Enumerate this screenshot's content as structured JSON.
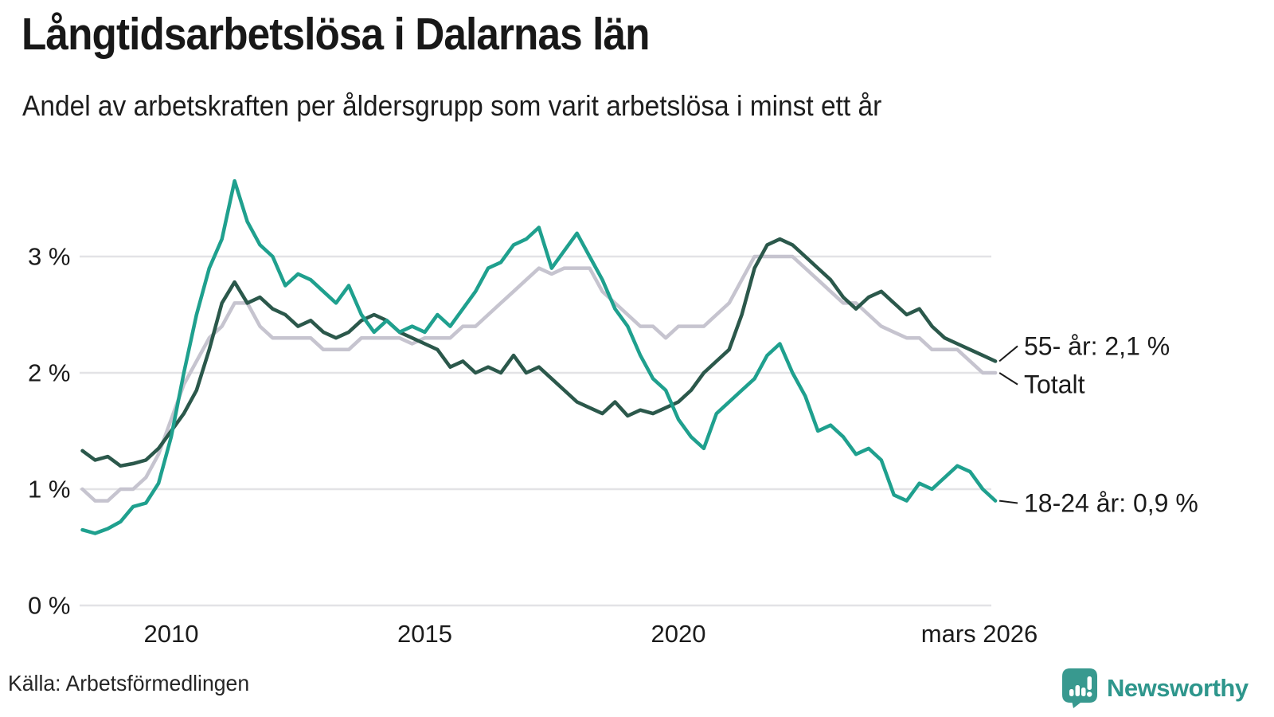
{
  "header": {
    "title": "Långtidsarbetslösa i Dalarnas län",
    "subtitle": "Andel av arbetskraften per åldersgrupp som varit arbetslösa i minst ett år"
  },
  "source": {
    "label": "Källa: Arbetsförmedlingen"
  },
  "branding": {
    "name": "Newsworthy",
    "logo_icon": "newsworthy-bar-chart-bubble",
    "brand_color": "#2E968C",
    "icon_fill": "#38998F"
  },
  "colors": {
    "grid": "#E3E3E6",
    "axis_text": "#1b1b1b",
    "annotation_text": "#1b1b1b",
    "connector": "#1b1b1b"
  },
  "chart_data": {
    "type": "line",
    "title": "Långtidsarbetslösa i Dalarnas län",
    "subtitle": "Andel av arbetskraften per åldersgrupp som varit arbetslösa i minst ett år",
    "unit": "%",
    "grid": true,
    "legend_position": "end-of-line-annotations",
    "x_axis": {
      "range": [
        2008.2,
        2026.3
      ],
      "ticks": [
        {
          "value": 2010,
          "label": "2010"
        },
        {
          "value": 2015,
          "label": "2015"
        },
        {
          "value": 2020,
          "label": "2020"
        },
        {
          "value": 2026.17,
          "label": "mars 2026"
        }
      ]
    },
    "y_axis": {
      "range": [
        0,
        3.75
      ],
      "ticks": [
        {
          "value": 0,
          "label": "0 %"
        },
        {
          "value": 1,
          "label": "1 %"
        },
        {
          "value": 2,
          "label": "2 %"
        },
        {
          "value": 3,
          "label": "3 %"
        }
      ]
    },
    "x": [
      2008.25,
      2008.5,
      2008.75,
      2009.0,
      2009.25,
      2009.5,
      2009.75,
      2010.0,
      2010.25,
      2010.5,
      2010.75,
      2011.0,
      2011.25,
      2011.5,
      2011.75,
      2012.0,
      2012.25,
      2012.5,
      2012.75,
      2013.0,
      2013.25,
      2013.5,
      2013.75,
      2014.0,
      2014.25,
      2014.5,
      2014.75,
      2015.0,
      2015.25,
      2015.5,
      2015.75,
      2016.0,
      2016.25,
      2016.5,
      2016.75,
      2017.0,
      2017.25,
      2017.5,
      2017.75,
      2018.0,
      2018.25,
      2018.5,
      2018.75,
      2019.0,
      2019.25,
      2019.5,
      2019.75,
      2020.0,
      2020.25,
      2020.5,
      2020.75,
      2021.0,
      2021.25,
      2021.5,
      2021.75,
      2022.0,
      2022.25,
      2022.5,
      2022.75,
      2023.0,
      2023.25,
      2023.5,
      2023.75,
      2024.0,
      2024.25,
      2024.5,
      2024.75,
      2025.0,
      2025.25,
      2025.5,
      2025.75,
      2026.0,
      2026.25
    ],
    "series": [
      {
        "name": "Totalt",
        "color": "#C6C4CF",
        "end_label": "Totalt",
        "end_value": 2.0,
        "label_value": 1.9,
        "values": [
          1.0,
          0.9,
          0.9,
          1.0,
          1.0,
          1.1,
          1.3,
          1.6,
          1.9,
          2.1,
          2.3,
          2.4,
          2.6,
          2.6,
          2.4,
          2.3,
          2.3,
          2.3,
          2.3,
          2.2,
          2.2,
          2.2,
          2.3,
          2.3,
          2.3,
          2.3,
          2.25,
          2.3,
          2.3,
          2.3,
          2.4,
          2.4,
          2.5,
          2.6,
          2.7,
          2.8,
          2.9,
          2.85,
          2.9,
          2.9,
          2.9,
          2.7,
          2.6,
          2.5,
          2.4,
          2.4,
          2.3,
          2.4,
          2.4,
          2.4,
          2.5,
          2.6,
          2.8,
          3.0,
          3.0,
          3.0,
          3.0,
          2.9,
          2.8,
          2.7,
          2.6,
          2.6,
          2.5,
          2.4,
          2.35,
          2.3,
          2.3,
          2.2,
          2.2,
          2.2,
          2.1,
          2.0,
          2.0
        ]
      },
      {
        "name": "55- år",
        "color": "#2B584B",
        "end_label": "55- år: 2,1 %",
        "end_value": 2.1,
        "label_value": 2.23,
        "values": [
          1.33,
          1.25,
          1.28,
          1.2,
          1.22,
          1.25,
          1.35,
          1.5,
          1.65,
          1.85,
          2.2,
          2.6,
          2.78,
          2.6,
          2.65,
          2.55,
          2.5,
          2.4,
          2.45,
          2.35,
          2.3,
          2.35,
          2.45,
          2.5,
          2.45,
          2.35,
          2.3,
          2.25,
          2.2,
          2.05,
          2.1,
          2.0,
          2.05,
          2.0,
          2.15,
          2.0,
          2.05,
          1.95,
          1.85,
          1.75,
          1.7,
          1.65,
          1.75,
          1.63,
          1.68,
          1.65,
          1.7,
          1.75,
          1.85,
          2.0,
          2.1,
          2.2,
          2.5,
          2.9,
          3.1,
          3.15,
          3.1,
          3.0,
          2.9,
          2.8,
          2.65,
          2.55,
          2.65,
          2.7,
          2.6,
          2.5,
          2.55,
          2.4,
          2.3,
          2.25,
          2.2,
          2.15,
          2.1
        ]
      },
      {
        "name": "18-24 år",
        "color": "#1FA08E",
        "end_label": "18-24 år: 0,9 %",
        "end_value": 0.9,
        "label_value": 0.88,
        "values": [
          0.65,
          0.62,
          0.66,
          0.72,
          0.85,
          0.88,
          1.05,
          1.45,
          2.0,
          2.5,
          2.9,
          3.15,
          3.65,
          3.3,
          3.1,
          3.0,
          2.75,
          2.85,
          2.8,
          2.7,
          2.6,
          2.75,
          2.5,
          2.35,
          2.45,
          2.35,
          2.4,
          2.35,
          2.5,
          2.4,
          2.55,
          2.7,
          2.9,
          2.95,
          3.1,
          3.15,
          3.25,
          2.9,
          3.05,
          3.2,
          3.0,
          2.8,
          2.55,
          2.4,
          2.15,
          1.95,
          1.85,
          1.6,
          1.45,
          1.35,
          1.65,
          1.75,
          1.85,
          1.95,
          2.15,
          2.25,
          2.0,
          1.8,
          1.5,
          1.55,
          1.45,
          1.3,
          1.35,
          1.25,
          0.95,
          0.9,
          1.05,
          1.0,
          1.1,
          1.2,
          1.15,
          1.0,
          0.9
        ]
      }
    ]
  }
}
